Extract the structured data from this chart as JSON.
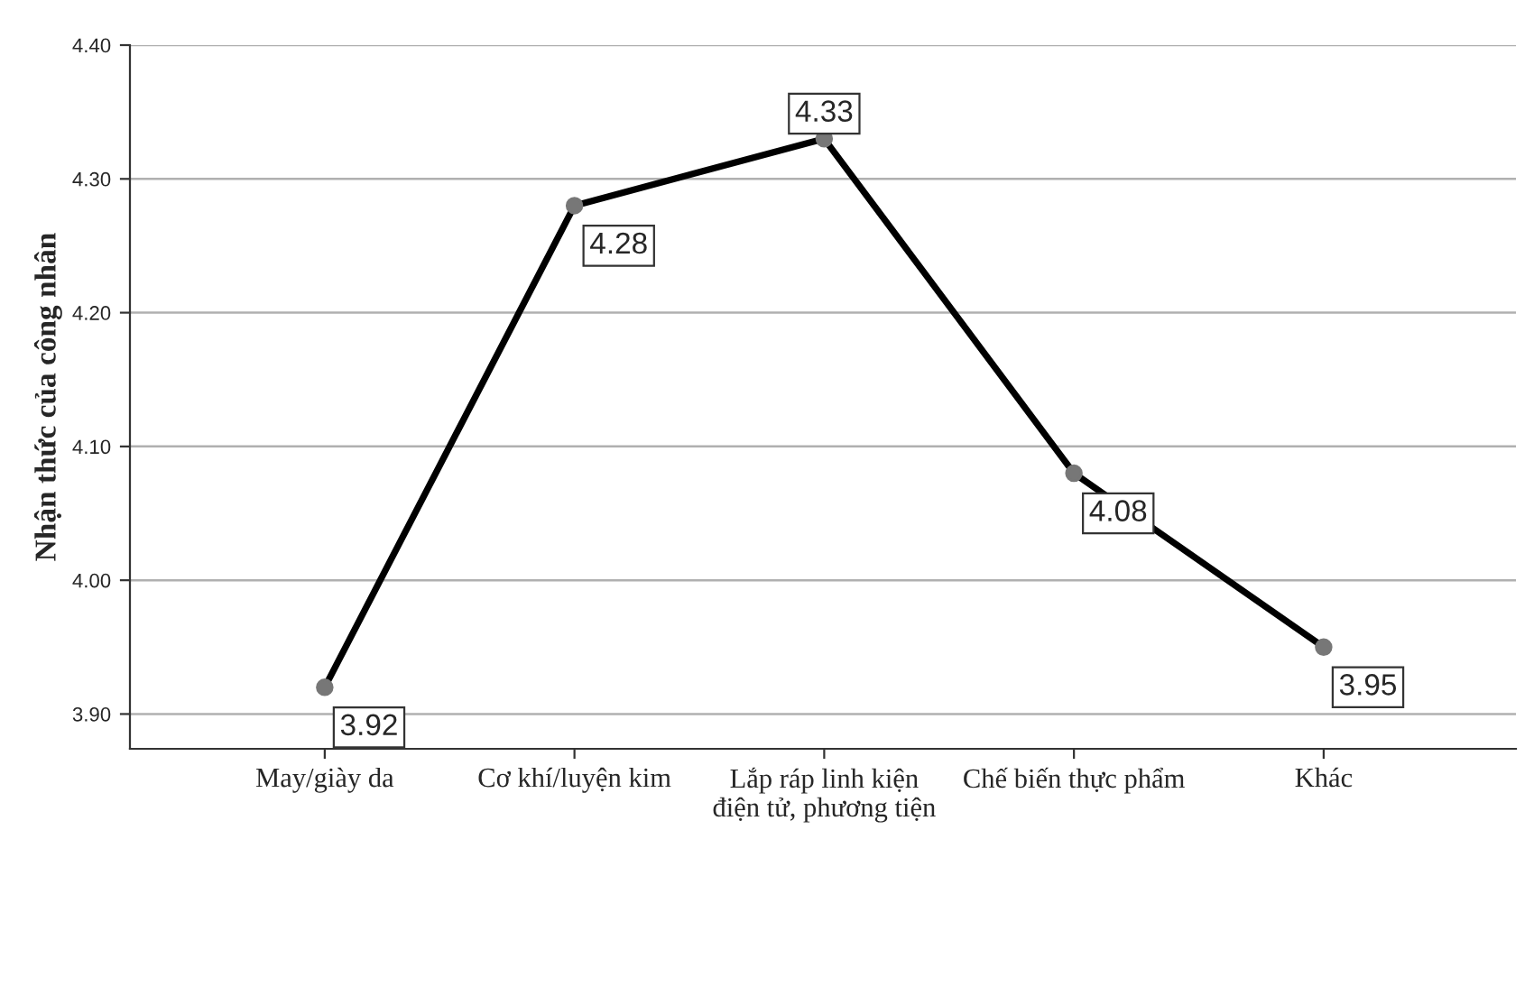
{
  "chart_data": {
    "type": "line",
    "ylabel": "Nhận thức của công nhân",
    "categories": [
      "May/giày da",
      "Cơ khí/luyện kim",
      "Lắp ráp linh kiện\nđiện tử, phương tiện",
      "Chế biến thực phẩm",
      "Khác"
    ],
    "series": [
      {
        "color": "#000000",
        "values": [
          3.92,
          4.28,
          4.33,
          4.08,
          3.95
        ]
      }
    ],
    "ylim": [
      3.874,
      4.4
    ],
    "yticks": [
      {
        "value": 3.9,
        "label": "3.90"
      },
      {
        "value": 4.0,
        "label": "4.00"
      },
      {
        "value": 4.1,
        "label": "4.10"
      },
      {
        "value": 4.2,
        "label": "4.20"
      },
      {
        "value": 4.3,
        "label": "4.30"
      },
      {
        "value": 4.4,
        "label": "4.40"
      }
    ],
    "grid": "y",
    "marker": "circle",
    "line_style": "solid",
    "data_labels": true
  }
}
